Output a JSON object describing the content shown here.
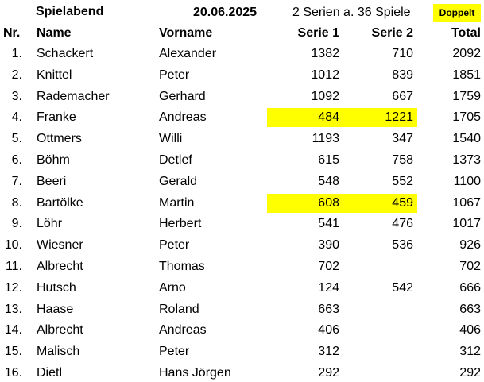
{
  "header": {
    "title": "Spielabend",
    "date": "20.06.2025",
    "format": "2 Serien a. 36 Spiele",
    "badge": "Doppelt",
    "badge_color": "#ffff00"
  },
  "table": {
    "columns": [
      "Nr.",
      "Name",
      "Vorname",
      "Serie 1",
      "Serie 2",
      "Total"
    ],
    "highlight_color": "#ffff00",
    "rows": [
      {
        "nr": "1.",
        "name": "Schackert",
        "vorname": "Alexander",
        "serie1": 1382,
        "serie2": 710,
        "total": 2092,
        "highlight": false
      },
      {
        "nr": "2.",
        "name": "Knittel",
        "vorname": "Peter",
        "serie1": 1012,
        "serie2": 839,
        "total": 1851,
        "highlight": false
      },
      {
        "nr": "3.",
        "name": "Rademacher",
        "vorname": "Gerhard",
        "serie1": 1092,
        "serie2": 667,
        "total": 1759,
        "highlight": false
      },
      {
        "nr": "4.",
        "name": "Franke",
        "vorname": "Andreas",
        "serie1": 484,
        "serie2": 1221,
        "total": 1705,
        "highlight": true
      },
      {
        "nr": "5.",
        "name": "Ottmers",
        "vorname": "Willi",
        "serie1": 1193,
        "serie2": 347,
        "total": 1540,
        "highlight": false
      },
      {
        "nr": "6.",
        "name": "Böhm",
        "vorname": "Detlef",
        "serie1": 615,
        "serie2": 758,
        "total": 1373,
        "highlight": false
      },
      {
        "nr": "7.",
        "name": "Beeri",
        "vorname": "Gerald",
        "serie1": 548,
        "serie2": 552,
        "total": 1100,
        "highlight": false
      },
      {
        "nr": "8.",
        "name": "Bartölke",
        "vorname": "Martin",
        "serie1": 608,
        "serie2": 459,
        "total": 1067,
        "highlight": true
      },
      {
        "nr": "9.",
        "name": "Löhr",
        "vorname": "Herbert",
        "serie1": 541,
        "serie2": 476,
        "total": 1017,
        "highlight": false
      },
      {
        "nr": "10.",
        "name": "Wiesner",
        "vorname": "Peter",
        "serie1": 390,
        "serie2": 536,
        "total": 926,
        "highlight": false
      },
      {
        "nr": "11.",
        "name": "Albrecht",
        "vorname": "Thomas",
        "serie1": 702,
        "serie2": null,
        "total": 702,
        "highlight": false
      },
      {
        "nr": "12.",
        "name": "Hutsch",
        "vorname": "Arno",
        "serie1": 124,
        "serie2": 542,
        "total": 666,
        "highlight": false
      },
      {
        "nr": "13.",
        "name": "Haase",
        "vorname": "Roland",
        "serie1": 663,
        "serie2": null,
        "total": 663,
        "highlight": false
      },
      {
        "nr": "14.",
        "name": "Albrecht",
        "vorname": "Andreas",
        "serie1": 406,
        "serie2": null,
        "total": 406,
        "highlight": false
      },
      {
        "nr": "15.",
        "name": "Malisch",
        "vorname": "Peter",
        "serie1": 312,
        "serie2": null,
        "total": 312,
        "highlight": false
      },
      {
        "nr": "16.",
        "name": "Dietl",
        "vorname": "Hans Jörgen",
        "serie1": 292,
        "serie2": null,
        "total": 292,
        "highlight": false
      }
    ]
  }
}
